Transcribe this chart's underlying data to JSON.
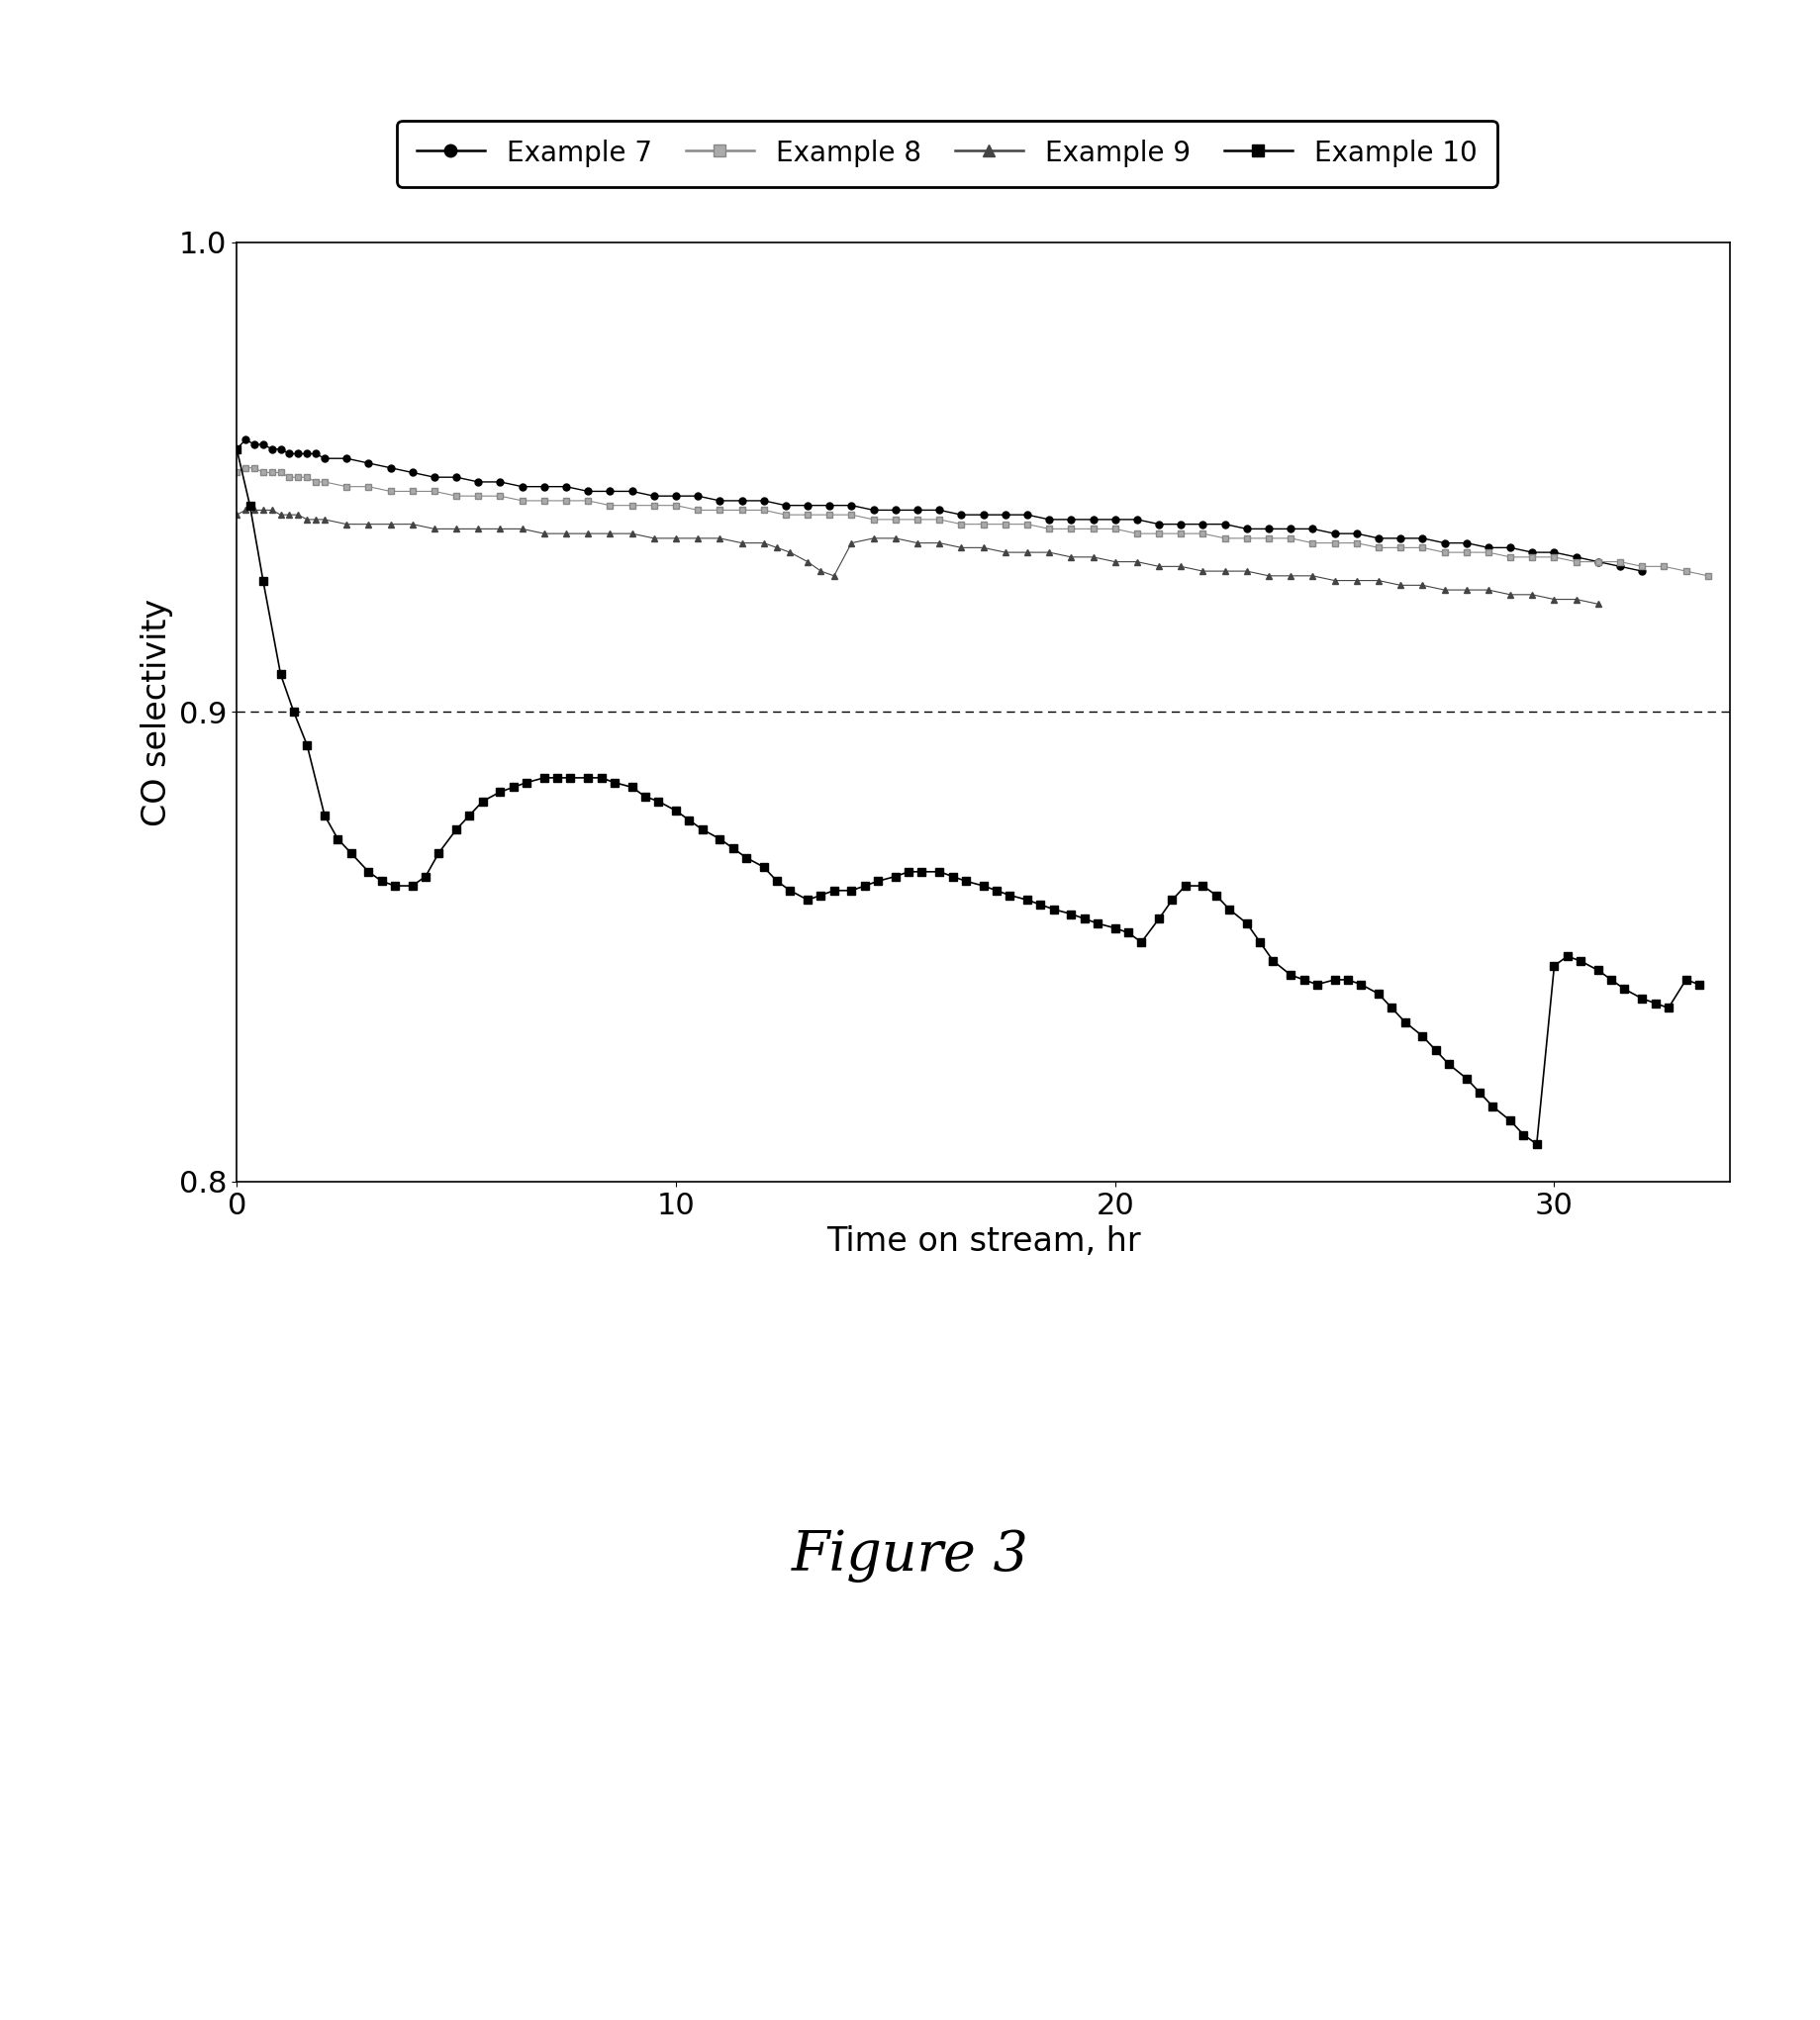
{
  "title": "Figure 3",
  "xlabel": "Time on stream, hr",
  "ylabel": "CO selectivity",
  "xlim": [
    0,
    34
  ],
  "ylim": [
    0.8,
    1.0
  ],
  "yticks": [
    0.8,
    0.9,
    1.0
  ],
  "xticks": [
    0,
    10,
    20,
    30
  ],
  "hline_y": 0.9,
  "legend_labels": [
    "Example 7",
    "Example 8",
    "Example 9",
    "Example 10"
  ],
  "ex7_x": [
    0.0,
    0.2,
    0.4,
    0.6,
    0.8,
    1.0,
    1.2,
    1.4,
    1.6,
    1.8,
    2.0,
    2.5,
    3.0,
    3.5,
    4.0,
    4.5,
    5.0,
    5.5,
    6.0,
    6.5,
    7.0,
    7.5,
    8.0,
    8.5,
    9.0,
    9.5,
    10.0,
    10.5,
    11.0,
    11.5,
    12.0,
    12.5,
    13.0,
    13.5,
    14.0,
    14.5,
    15.0,
    15.5,
    16.0,
    16.5,
    17.0,
    17.5,
    18.0,
    18.5,
    19.0,
    19.5,
    20.0,
    20.5,
    21.0,
    21.5,
    22.0,
    22.5,
    23.0,
    23.5,
    24.0,
    24.5,
    25.0,
    25.5,
    26.0,
    26.5,
    27.0,
    27.5,
    28.0,
    28.5,
    29.0,
    29.5,
    30.0,
    30.5,
    31.0,
    31.5,
    32.0
  ],
  "ex7_y": [
    0.956,
    0.958,
    0.957,
    0.957,
    0.956,
    0.956,
    0.955,
    0.955,
    0.955,
    0.955,
    0.954,
    0.954,
    0.953,
    0.952,
    0.951,
    0.95,
    0.95,
    0.949,
    0.949,
    0.948,
    0.948,
    0.948,
    0.947,
    0.947,
    0.947,
    0.946,
    0.946,
    0.946,
    0.945,
    0.945,
    0.945,
    0.944,
    0.944,
    0.944,
    0.944,
    0.943,
    0.943,
    0.943,
    0.943,
    0.942,
    0.942,
    0.942,
    0.942,
    0.941,
    0.941,
    0.941,
    0.941,
    0.941,
    0.94,
    0.94,
    0.94,
    0.94,
    0.939,
    0.939,
    0.939,
    0.939,
    0.938,
    0.938,
    0.937,
    0.937,
    0.937,
    0.936,
    0.936,
    0.935,
    0.935,
    0.934,
    0.934,
    0.933,
    0.932,
    0.931,
    0.93
  ],
  "ex8_x": [
    0.0,
    0.2,
    0.4,
    0.6,
    0.8,
    1.0,
    1.2,
    1.4,
    1.6,
    1.8,
    2.0,
    2.5,
    3.0,
    3.5,
    4.0,
    4.5,
    5.0,
    5.5,
    6.0,
    6.5,
    7.0,
    7.5,
    8.0,
    8.5,
    9.0,
    9.5,
    10.0,
    10.5,
    11.0,
    11.5,
    12.0,
    12.5,
    13.0,
    13.5,
    14.0,
    14.5,
    15.0,
    15.5,
    16.0,
    16.5,
    17.0,
    17.5,
    18.0,
    18.5,
    19.0,
    19.5,
    20.0,
    20.5,
    21.0,
    21.5,
    22.0,
    22.5,
    23.0,
    23.5,
    24.0,
    24.5,
    25.0,
    25.5,
    26.0,
    26.5,
    27.0,
    27.5,
    28.0,
    28.5,
    29.0,
    29.5,
    30.0,
    30.5,
    31.0,
    31.5,
    32.0,
    32.5,
    33.0,
    33.5
  ],
  "ex8_y": [
    0.951,
    0.952,
    0.952,
    0.951,
    0.951,
    0.951,
    0.95,
    0.95,
    0.95,
    0.949,
    0.949,
    0.948,
    0.948,
    0.947,
    0.947,
    0.947,
    0.946,
    0.946,
    0.946,
    0.945,
    0.945,
    0.945,
    0.945,
    0.944,
    0.944,
    0.944,
    0.944,
    0.943,
    0.943,
    0.943,
    0.943,
    0.942,
    0.942,
    0.942,
    0.942,
    0.941,
    0.941,
    0.941,
    0.941,
    0.94,
    0.94,
    0.94,
    0.94,
    0.939,
    0.939,
    0.939,
    0.939,
    0.938,
    0.938,
    0.938,
    0.938,
    0.937,
    0.937,
    0.937,
    0.937,
    0.936,
    0.936,
    0.936,
    0.935,
    0.935,
    0.935,
    0.934,
    0.934,
    0.934,
    0.933,
    0.933,
    0.933,
    0.932,
    0.932,
    0.932,
    0.931,
    0.931,
    0.93,
    0.929
  ],
  "ex9_x": [
    0.0,
    0.2,
    0.4,
    0.6,
    0.8,
    1.0,
    1.2,
    1.4,
    1.6,
    1.8,
    2.0,
    2.5,
    3.0,
    3.5,
    4.0,
    4.5,
    5.0,
    5.5,
    6.0,
    6.5,
    7.0,
    7.5,
    8.0,
    8.5,
    9.0,
    9.5,
    10.0,
    10.5,
    11.0,
    11.5,
    12.0,
    12.3,
    12.6,
    13.0,
    13.3,
    13.6,
    14.0,
    14.5,
    15.0,
    15.5,
    16.0,
    16.5,
    17.0,
    17.5,
    18.0,
    18.5,
    19.0,
    19.5,
    20.0,
    20.5,
    21.0,
    21.5,
    22.0,
    22.5,
    23.0,
    23.5,
    24.0,
    24.5,
    25.0,
    25.5,
    26.0,
    26.5,
    27.0,
    27.5,
    28.0,
    28.5,
    29.0,
    29.5,
    30.0,
    30.5,
    31.0
  ],
  "ex9_y": [
    0.942,
    0.943,
    0.943,
    0.943,
    0.943,
    0.942,
    0.942,
    0.942,
    0.941,
    0.941,
    0.941,
    0.94,
    0.94,
    0.94,
    0.94,
    0.939,
    0.939,
    0.939,
    0.939,
    0.939,
    0.938,
    0.938,
    0.938,
    0.938,
    0.938,
    0.937,
    0.937,
    0.937,
    0.937,
    0.936,
    0.936,
    0.935,
    0.934,
    0.932,
    0.93,
    0.929,
    0.936,
    0.937,
    0.937,
    0.936,
    0.936,
    0.935,
    0.935,
    0.934,
    0.934,
    0.934,
    0.933,
    0.933,
    0.932,
    0.932,
    0.931,
    0.931,
    0.93,
    0.93,
    0.93,
    0.929,
    0.929,
    0.929,
    0.928,
    0.928,
    0.928,
    0.927,
    0.927,
    0.926,
    0.926,
    0.926,
    0.925,
    0.925,
    0.924,
    0.924,
    0.923
  ],
  "ex10_x": [
    0.0,
    0.3,
    0.6,
    1.0,
    1.3,
    1.6,
    2.0,
    2.3,
    2.6,
    3.0,
    3.3,
    3.6,
    4.0,
    4.3,
    4.6,
    5.0,
    5.3,
    5.6,
    6.0,
    6.3,
    6.6,
    7.0,
    7.3,
    7.6,
    8.0,
    8.3,
    8.6,
    9.0,
    9.3,
    9.6,
    10.0,
    10.3,
    10.6,
    11.0,
    11.3,
    11.6,
    12.0,
    12.3,
    12.6,
    13.0,
    13.3,
    13.6,
    14.0,
    14.3,
    14.6,
    15.0,
    15.3,
    15.6,
    16.0,
    16.3,
    16.6,
    17.0,
    17.3,
    17.6,
    18.0,
    18.3,
    18.6,
    19.0,
    19.3,
    19.6,
    20.0,
    20.3,
    20.6,
    21.0,
    21.3,
    21.6,
    22.0,
    22.3,
    22.6,
    23.0,
    23.3,
    23.6,
    24.0,
    24.3,
    24.6,
    25.0,
    25.3,
    25.6,
    26.0,
    26.3,
    26.6,
    27.0,
    27.3,
    27.6,
    28.0,
    28.3,
    28.6,
    29.0,
    29.3,
    29.6,
    30.0,
    30.3,
    30.6,
    31.0,
    31.3,
    31.6,
    32.0,
    32.3,
    32.6,
    33.0,
    33.3
  ],
  "ex10_y": [
    0.956,
    0.944,
    0.928,
    0.908,
    0.9,
    0.893,
    0.878,
    0.873,
    0.87,
    0.866,
    0.864,
    0.863,
    0.863,
    0.865,
    0.87,
    0.875,
    0.878,
    0.881,
    0.883,
    0.884,
    0.885,
    0.886,
    0.886,
    0.886,
    0.886,
    0.886,
    0.885,
    0.884,
    0.882,
    0.881,
    0.879,
    0.877,
    0.875,
    0.873,
    0.871,
    0.869,
    0.867,
    0.864,
    0.862,
    0.86,
    0.861,
    0.862,
    0.862,
    0.863,
    0.864,
    0.865,
    0.866,
    0.866,
    0.866,
    0.865,
    0.864,
    0.863,
    0.862,
    0.861,
    0.86,
    0.859,
    0.858,
    0.857,
    0.856,
    0.855,
    0.854,
    0.853,
    0.851,
    0.856,
    0.86,
    0.863,
    0.863,
    0.861,
    0.858,
    0.855,
    0.851,
    0.847,
    0.844,
    0.843,
    0.842,
    0.843,
    0.843,
    0.842,
    0.84,
    0.837,
    0.834,
    0.831,
    0.828,
    0.825,
    0.822,
    0.819,
    0.816,
    0.813,
    0.81,
    0.808,
    0.846,
    0.848,
    0.847,
    0.845,
    0.843,
    0.841,
    0.839,
    0.838,
    0.837,
    0.843,
    0.842
  ],
  "background_color": "#ffffff",
  "figure_title": "Figure 3",
  "figure_title_fontsize": 40
}
